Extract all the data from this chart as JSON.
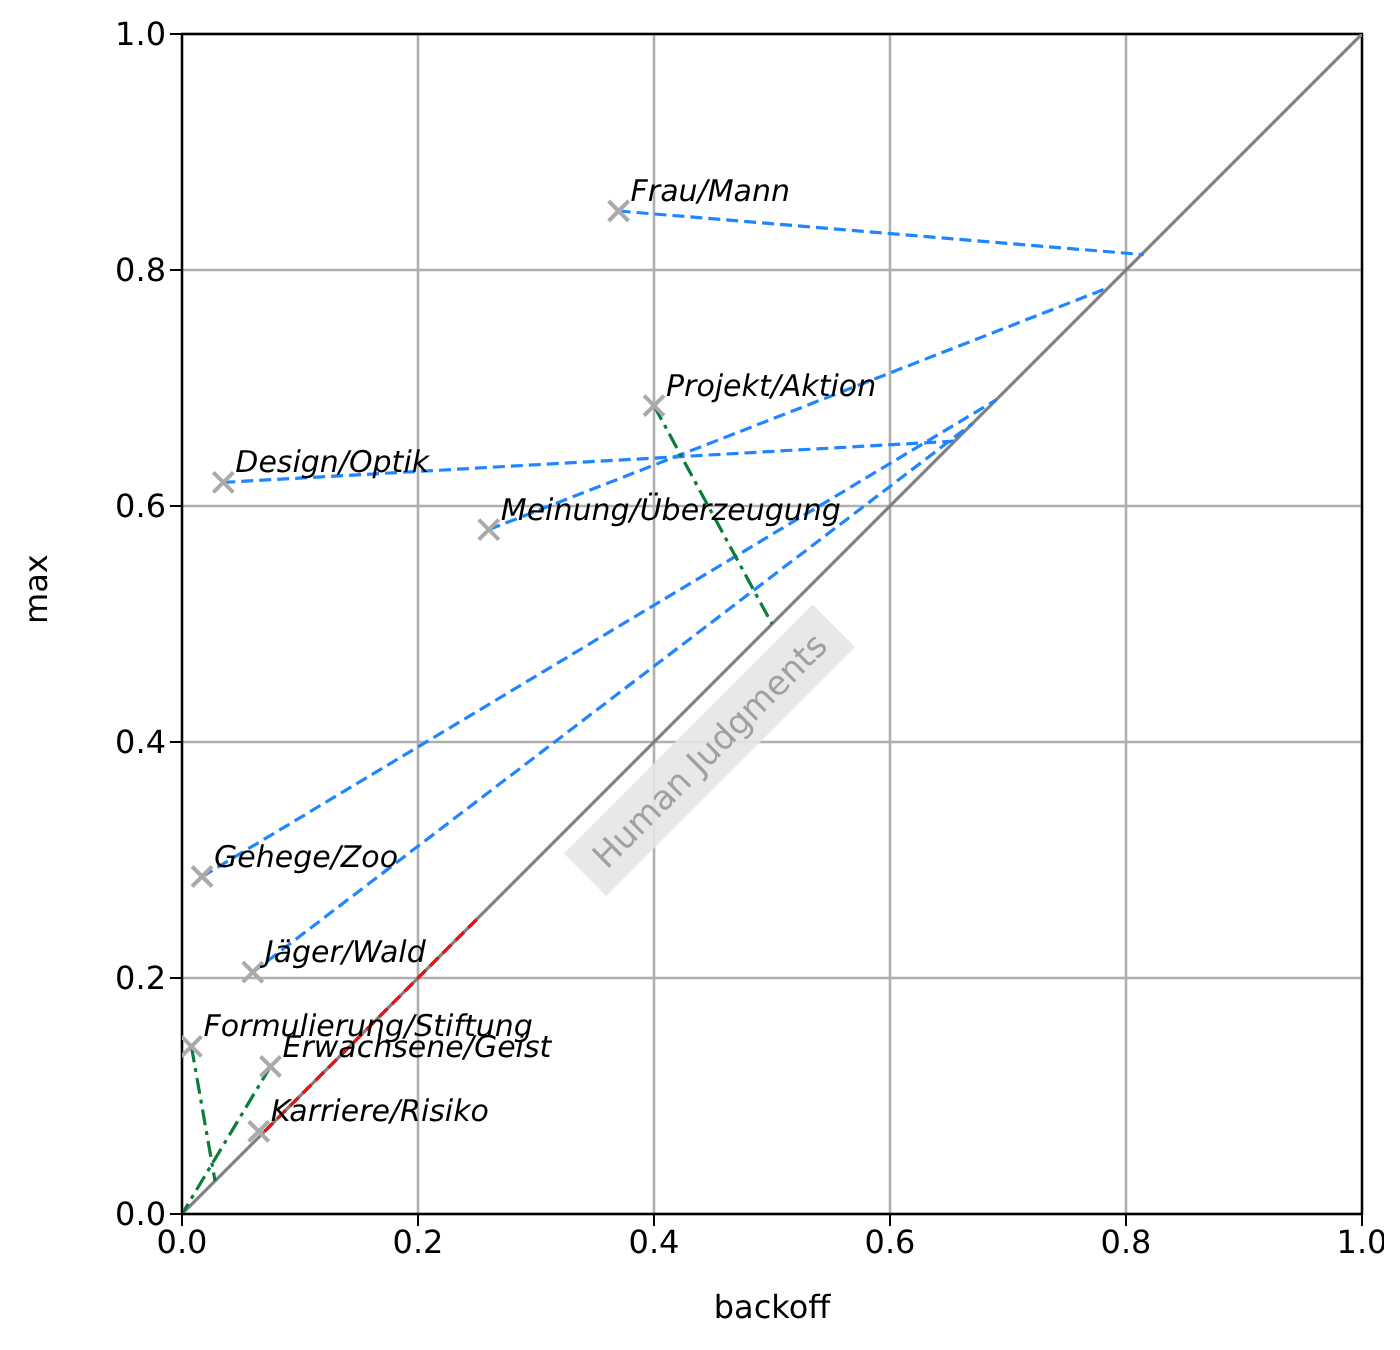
{
  "chart_data": {
    "type": "scatter",
    "xlabel": "backoff",
    "ylabel": "max",
    "xlim": [
      0,
      1
    ],
    "ylim": [
      0,
      1
    ],
    "xticks": [
      {
        "value": 0,
        "label": "0.0"
      },
      {
        "value": 0.2,
        "label": "0.2"
      },
      {
        "value": 0.4,
        "label": "0.4"
      },
      {
        "value": 0.6,
        "label": "0.6"
      },
      {
        "value": 0.8,
        "label": "0.8"
      },
      {
        "value": 1,
        "label": "1.0"
      }
    ],
    "yticks": [
      {
        "value": 0,
        "label": "0.0"
      },
      {
        "value": 0.2,
        "label": "0.2"
      },
      {
        "value": 0.4,
        "label": "0.4"
      },
      {
        "value": 0.6,
        "label": "0.6"
      },
      {
        "value": 0.8,
        "label": "0.8"
      },
      {
        "value": 1,
        "label": "1.0"
      }
    ],
    "grid": true,
    "series": [
      {
        "type": "line",
        "marker": "none",
        "color": "#808080",
        "line_style": "solid",
        "x": [
          0,
          1
        ],
        "values": [
          0,
          1
        ]
      },
      {
        "type": "line",
        "marker": "none",
        "color": "#1f86ff",
        "line_style": "dashed",
        "x": [
          0.37,
          0.815
        ],
        "values": [
          0.85,
          0.813
        ]
      },
      {
        "type": "line",
        "marker": "none",
        "color": "#1f86ff",
        "line_style": "dashed",
        "x": [
          0.26,
          0.785
        ],
        "values": [
          0.58,
          0.785
        ]
      },
      {
        "type": "line",
        "marker": "none",
        "color": "#1f86ff",
        "line_style": "dashed",
        "x": [
          0.035,
          0.655
        ],
        "values": [
          0.62,
          0.655
        ]
      },
      {
        "type": "line",
        "marker": "none",
        "color": "#1f86ff",
        "line_style": "dashed",
        "x": [
          0.017,
          0.69
        ],
        "values": [
          0.286,
          0.69
        ]
      },
      {
        "type": "line",
        "marker": "none",
        "color": "#1f86ff",
        "line_style": "dashed",
        "x": [
          0.06,
          0.67
        ],
        "values": [
          0.205,
          0.67
        ]
      },
      {
        "type": "line",
        "marker": "none",
        "color": "#0a7d3a",
        "line_style": "dashdot",
        "x": [
          0.4,
          0.5
        ],
        "values": [
          0.685,
          0.5
        ]
      },
      {
        "type": "line",
        "marker": "none",
        "color": "#0a7d3a",
        "line_style": "dashdot",
        "x": [
          0.008,
          0.028
        ],
        "values": [
          0.142,
          0.028
        ]
      },
      {
        "type": "line",
        "marker": "none",
        "color": "#0a7d3a",
        "line_style": "dashdot",
        "x": [
          0.075,
          0
        ],
        "values": [
          0.125,
          0
        ]
      },
      {
        "type": "line",
        "marker": "none",
        "color": "#ee1111",
        "line_style": "dashed",
        "x": [
          0.07,
          0.25
        ],
        "values": [
          0.07,
          0.25
        ]
      },
      {
        "name": "Frau/Mann",
        "marker": "cross",
        "color": "#aaaaaa",
        "x": [
          0.37
        ],
        "values": [
          0.85
        ]
      },
      {
        "name": "Projekt/Aktion",
        "marker": "cross",
        "color": "#aaaaaa",
        "x": [
          0.4
        ],
        "values": [
          0.685
        ]
      },
      {
        "name": "Design/Optik",
        "marker": "cross",
        "color": "#aaaaaa",
        "x": [
          0.035
        ],
        "values": [
          0.62
        ]
      },
      {
        "name": "Meinung/Überzeugung",
        "marker": "cross",
        "color": "#aaaaaa",
        "x": [
          0.26
        ],
        "values": [
          0.58
        ]
      },
      {
        "name": "Gehege/Zoo",
        "marker": "cross",
        "color": "#aaaaaa",
        "x": [
          0.017
        ],
        "values": [
          0.286
        ]
      },
      {
        "name": "Jäger/Wald",
        "marker": "cross",
        "color": "#aaaaaa",
        "x": [
          0.06
        ],
        "values": [
          0.205
        ]
      },
      {
        "name": "Formulierung/Stiftung",
        "marker": "cross",
        "color": "#aaaaaa",
        "x": [
          0.008
        ],
        "values": [
          0.142
        ]
      },
      {
        "name": "Erwachsene/Geist",
        "marker": "cross",
        "color": "#aaaaaa",
        "x": [
          0.075
        ],
        "values": [
          0.125
        ]
      },
      {
        "name": "Karriere/Risiko",
        "marker": "cross",
        "color": "#aaaaaa",
        "x": [
          0.065
        ],
        "values": [
          0.07
        ]
      }
    ],
    "annotations": [
      "Human Judgments"
    ]
  }
}
